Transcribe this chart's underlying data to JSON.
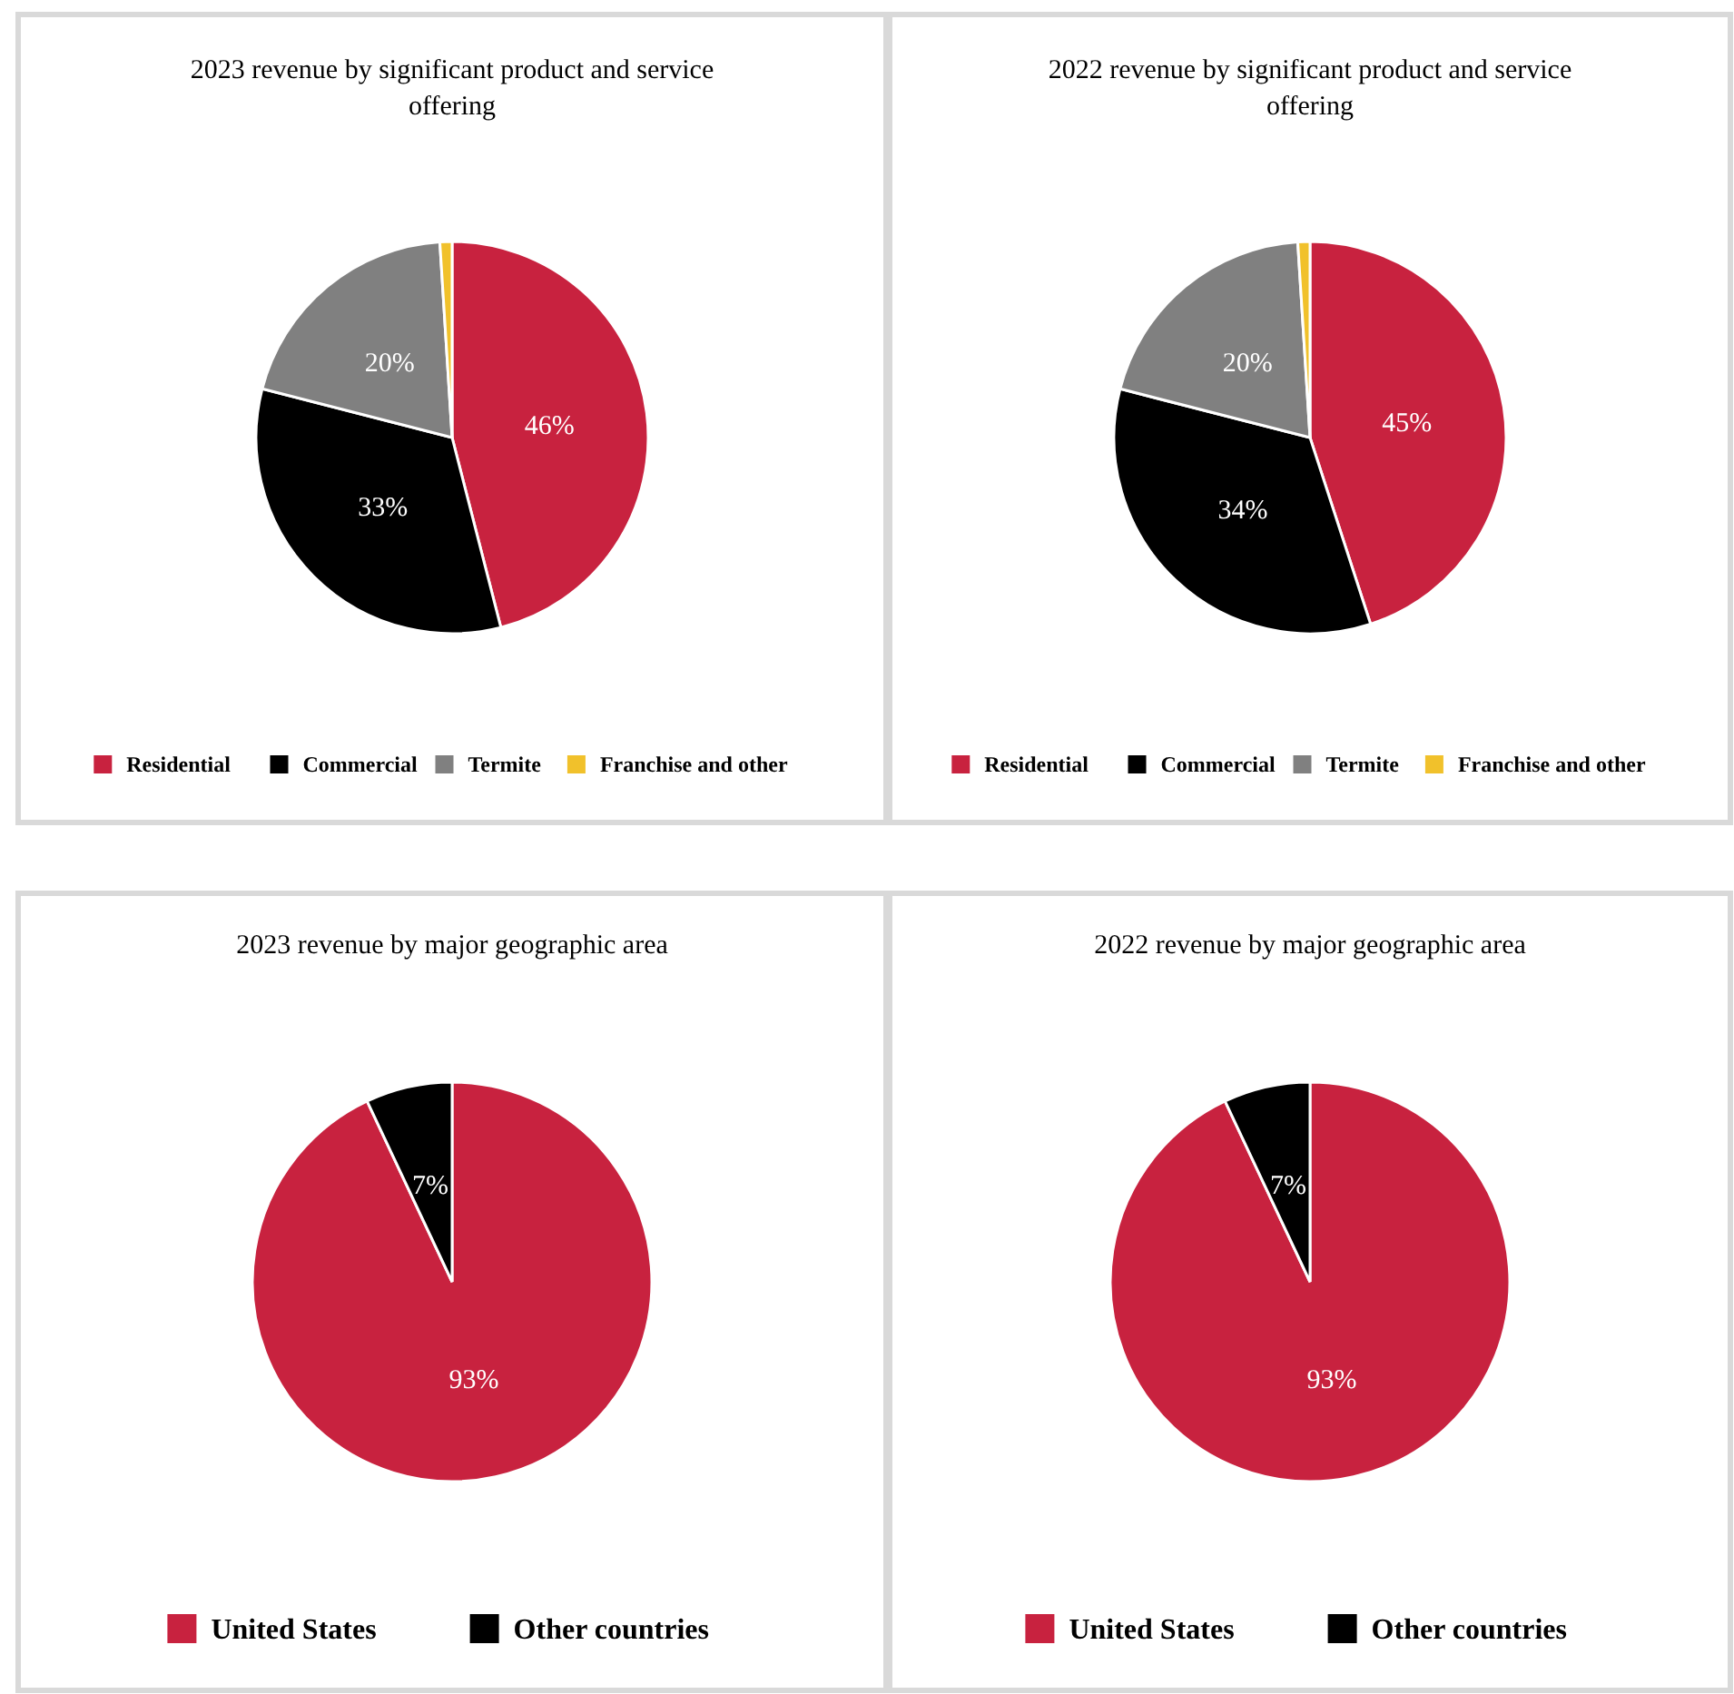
{
  "chart_data": [
    {
      "type": "pie",
      "title": "2023 revenue by significant product and service offering",
      "categories": [
        "Residential",
        "Commercial",
        "Termite",
        "Franchise and other"
      ],
      "values": [
        46,
        33,
        20,
        1
      ],
      "colors": [
        "#c8223f",
        "#000000",
        "#808080",
        "#f1c12b"
      ],
      "value_labels": [
        "46%",
        "33%",
        "20%",
        null
      ],
      "legend": "bottom"
    },
    {
      "type": "pie",
      "title": "2022 revenue by significant product and service offering",
      "categories": [
        "Residential",
        "Commercial",
        "Termite",
        "Franchise and other"
      ],
      "values": [
        45,
        34,
        20,
        1
      ],
      "colors": [
        "#c8223f",
        "#000000",
        "#808080",
        "#f1c12b"
      ],
      "value_labels": [
        "45%",
        "34%",
        "20%",
        null
      ],
      "legend": "bottom"
    },
    {
      "type": "pie",
      "title": "2023 revenue by major geographic area",
      "categories": [
        "United States",
        "Other countries"
      ],
      "values": [
        93,
        7
      ],
      "colors": [
        "#c8223f",
        "#000000"
      ],
      "value_labels": [
        "93%",
        "7%"
      ],
      "legend": "bottom"
    },
    {
      "type": "pie",
      "title": "2022 revenue by major geographic area",
      "categories": [
        "United States",
        "Other countries"
      ],
      "values": [
        93,
        7
      ],
      "colors": [
        "#c8223f",
        "#000000"
      ],
      "value_labels": [
        "93%",
        "7%"
      ],
      "legend": "bottom"
    }
  ]
}
